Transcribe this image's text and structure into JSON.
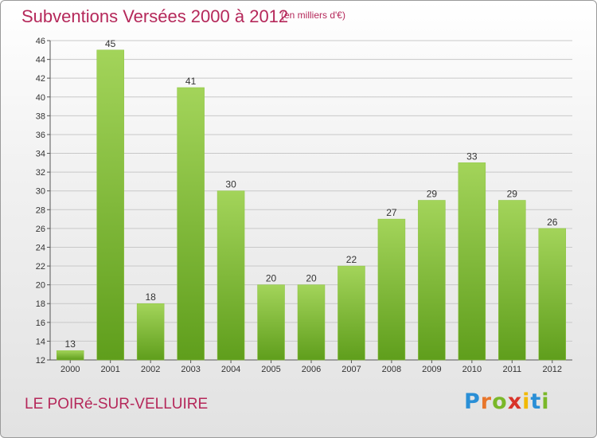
{
  "header": {
    "title": "Subventions Versées 2000 à 2012",
    "unit": "(en milliers d'€)"
  },
  "footer": {
    "commune": "LE POIRé-SUR-VELLUIRE",
    "logo_letters": [
      "P",
      "r",
      "o",
      "x",
      "i",
      "t",
      "i"
    ],
    "logo_colors": [
      "#2a8fd6",
      "#e8762b",
      "#7ab829",
      "#d8342a",
      "#f2b900",
      "#2a8fd6",
      "#7ab829"
    ]
  },
  "colors": {
    "title": "#b5285a",
    "bar_light": "#a3d45a",
    "bar_dark": "#5f9e1c",
    "grid": "#c8c8c8",
    "axis": "#555555"
  },
  "chart_data": {
    "type": "bar",
    "categories": [
      "2000",
      "2001",
      "2002",
      "2003",
      "2004",
      "2005",
      "2006",
      "2007",
      "2008",
      "2009",
      "2010",
      "2011",
      "2012"
    ],
    "values": [
      13,
      45,
      18,
      41,
      30,
      20,
      20,
      22,
      27,
      29,
      33,
      29,
      26
    ],
    "ylim": [
      12,
      46
    ],
    "yticks": [
      12,
      14,
      16,
      18,
      20,
      22,
      24,
      26,
      28,
      30,
      32,
      34,
      36,
      38,
      40,
      42,
      44,
      46
    ],
    "grid": true,
    "data_labels": true
  }
}
